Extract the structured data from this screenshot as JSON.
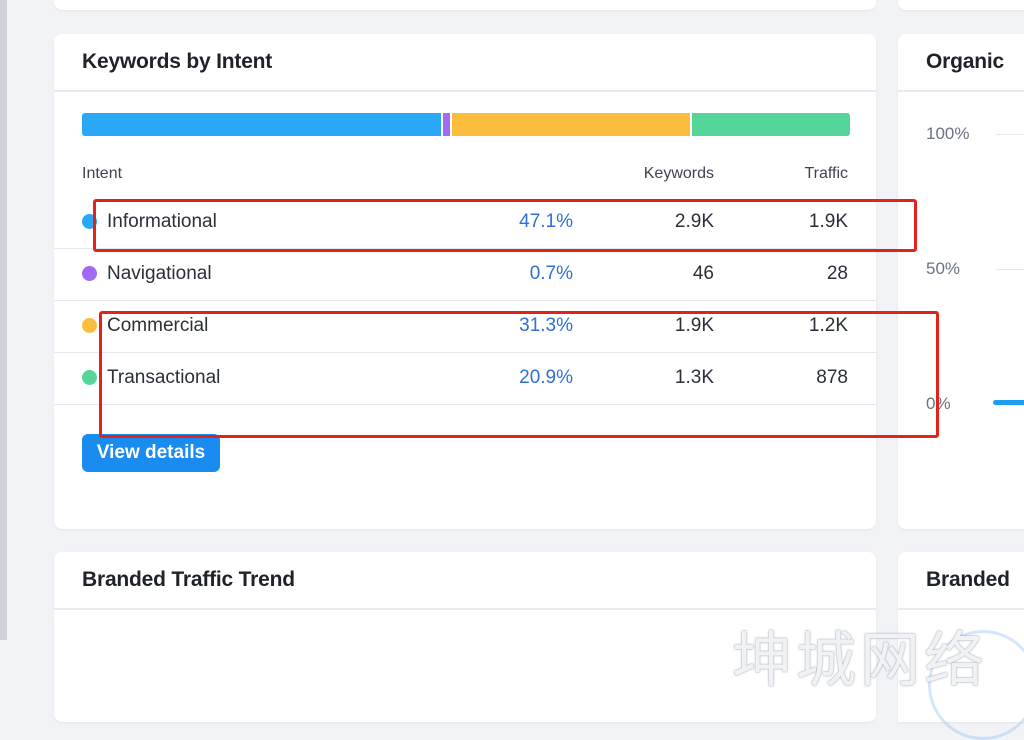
{
  "keywords_card": {
    "title": "Keywords by Intent",
    "headers": {
      "intent": "Intent",
      "keywords": "Keywords",
      "traffic": "Traffic"
    },
    "segments": [
      {
        "name": "Informational",
        "share": 0.471,
        "color": "#2aa7f5"
      },
      {
        "name": "Navigational",
        "share": 0.007,
        "color": "#a06af3"
      },
      {
        "name": "Commercial",
        "share": 0.313,
        "color": "#fbbd3d"
      },
      {
        "name": "Transactional",
        "share": 0.209,
        "color": "#55d59a"
      }
    ],
    "rows": [
      {
        "name": "Informational",
        "pct": "47.1%",
        "keywords": "2.9K",
        "traffic": "1.9K",
        "color": "#2aa7f5"
      },
      {
        "name": "Navigational",
        "pct": "0.7%",
        "keywords": "46",
        "traffic": "28",
        "color": "#a06af3"
      },
      {
        "name": "Commercial",
        "pct": "31.3%",
        "keywords": "1.9K",
        "traffic": "1.2K",
        "color": "#fbbd3d"
      },
      {
        "name": "Transactional",
        "pct": "20.9%",
        "keywords": "1.3K",
        "traffic": "878",
        "color": "#55d59a"
      }
    ],
    "view_details_label": "View details"
  },
  "organic_card": {
    "title": "Organic ",
    "y_ticks": [
      "100%",
      "50%",
      "0%"
    ]
  },
  "branded_traffic_card": {
    "title": "Branded Traffic Trend"
  },
  "branded_right_card": {
    "title": "Branded"
  },
  "watermark": "坤城网络",
  "colors": {
    "accent": "#1a8cf0",
    "link": "#2f6fd6",
    "annotation": "#e3221c"
  }
}
